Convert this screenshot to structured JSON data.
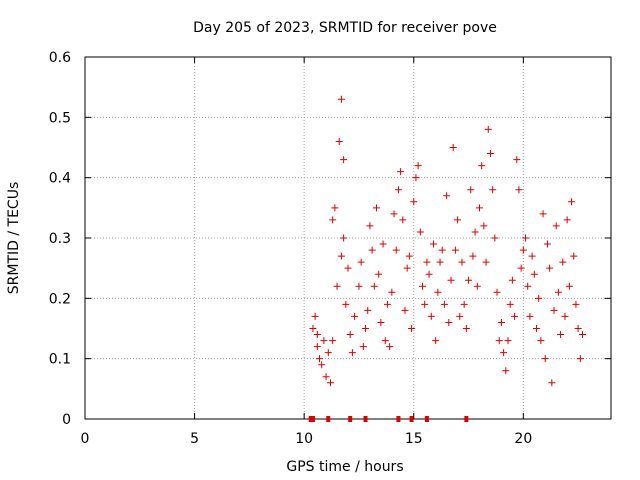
{
  "chart_data": {
    "type": "scatter",
    "title": "Day 205 of 2023, SRMTID for receiver pove",
    "xlabel": "GPS time / hours",
    "ylabel": "SRMTID / TECUs",
    "xlim": [
      0,
      24
    ],
    "ylim": [
      0,
      0.6
    ],
    "x_ticks": [
      0,
      5,
      10,
      15,
      20
    ],
    "x_tick_labels": [
      "0",
      "5",
      "10",
      "15",
      "20"
    ],
    "y_ticks": [
      0,
      0.1,
      0.2,
      0.3,
      0.4,
      0.5,
      0.6
    ],
    "y_tick_labels": [
      "0",
      "0.1",
      "0.2",
      "0.3",
      "0.4",
      "0.5",
      "0.6"
    ],
    "grid": true,
    "marker": "plus",
    "color": "#e00000",
    "bottom_markers_x": [
      10.3,
      10.4,
      11.1,
      12.1,
      12.8,
      14.3,
      14.9,
      15.6,
      17.4
    ],
    "series": [
      {
        "name": "SRMTID",
        "points": [
          [
            10.4,
            0.15
          ],
          [
            10.5,
            0.17
          ],
          [
            10.6,
            0.12
          ],
          [
            10.6,
            0.14
          ],
          [
            10.7,
            0.1
          ],
          [
            10.8,
            0.09
          ],
          [
            10.9,
            0.13
          ],
          [
            11.0,
            0.07
          ],
          [
            11.1,
            0.11
          ],
          [
            11.2,
            0.06
          ],
          [
            11.3,
            0.13
          ],
          [
            11.3,
            0.33
          ],
          [
            11.4,
            0.35
          ],
          [
            11.5,
            0.22
          ],
          [
            11.6,
            0.46
          ],
          [
            11.7,
            0.53
          ],
          [
            11.7,
            0.27
          ],
          [
            11.8,
            0.43
          ],
          [
            11.8,
            0.3
          ],
          [
            11.9,
            0.19
          ],
          [
            12.0,
            0.25
          ],
          [
            12.1,
            0.14
          ],
          [
            12.2,
            0.11
          ],
          [
            12.3,
            0.17
          ],
          [
            12.5,
            0.22
          ],
          [
            12.6,
            0.26
          ],
          [
            12.7,
            0.12
          ],
          [
            12.8,
            0.15
          ],
          [
            12.9,
            0.18
          ],
          [
            13.0,
            0.32
          ],
          [
            13.1,
            0.28
          ],
          [
            13.2,
            0.22
          ],
          [
            13.3,
            0.35
          ],
          [
            13.4,
            0.24
          ],
          [
            13.5,
            0.16
          ],
          [
            13.6,
            0.29
          ],
          [
            13.7,
            0.13
          ],
          [
            13.8,
            0.19
          ],
          [
            13.9,
            0.12
          ],
          [
            14.0,
            0.21
          ],
          [
            14.1,
            0.34
          ],
          [
            14.2,
            0.28
          ],
          [
            14.3,
            0.38
          ],
          [
            14.4,
            0.41
          ],
          [
            14.5,
            0.33
          ],
          [
            14.6,
            0.18
          ],
          [
            14.7,
            0.25
          ],
          [
            14.8,
            0.27
          ],
          [
            14.9,
            0.15
          ],
          [
            15.0,
            0.36
          ],
          [
            15.1,
            0.4
          ],
          [
            15.2,
            0.42
          ],
          [
            15.3,
            0.31
          ],
          [
            15.4,
            0.22
          ],
          [
            15.5,
            0.19
          ],
          [
            15.6,
            0.26
          ],
          [
            15.7,
            0.24
          ],
          [
            15.8,
            0.17
          ],
          [
            15.9,
            0.29
          ],
          [
            16.0,
            0.13
          ],
          [
            16.1,
            0.21
          ],
          [
            16.2,
            0.26
          ],
          [
            16.3,
            0.28
          ],
          [
            16.4,
            0.19
          ],
          [
            16.5,
            0.37
          ],
          [
            16.6,
            0.16
          ],
          [
            16.7,
            0.23
          ],
          [
            16.8,
            0.45
          ],
          [
            16.9,
            0.28
          ],
          [
            17.0,
            0.33
          ],
          [
            17.1,
            0.17
          ],
          [
            17.2,
            0.26
          ],
          [
            17.3,
            0.19
          ],
          [
            17.4,
            0.15
          ],
          [
            17.5,
            0.23
          ],
          [
            17.6,
            0.38
          ],
          [
            17.7,
            0.27
          ],
          [
            17.8,
            0.31
          ],
          [
            17.9,
            0.22
          ],
          [
            18.0,
            0.35
          ],
          [
            18.1,
            0.42
          ],
          [
            18.2,
            0.32
          ],
          [
            18.3,
            0.26
          ],
          [
            18.4,
            0.48
          ],
          [
            18.5,
            0.44
          ],
          [
            18.6,
            0.38
          ],
          [
            18.7,
            0.3
          ],
          [
            18.8,
            0.21
          ],
          [
            18.9,
            0.13
          ],
          [
            19.0,
            0.16
          ],
          [
            19.1,
            0.11
          ],
          [
            19.2,
            0.08
          ],
          [
            19.3,
            0.13
          ],
          [
            19.4,
            0.19
          ],
          [
            19.5,
            0.23
          ],
          [
            19.6,
            0.17
          ],
          [
            19.7,
            0.43
          ],
          [
            19.8,
            0.38
          ],
          [
            19.9,
            0.25
          ],
          [
            20.0,
            0.28
          ],
          [
            20.1,
            0.3
          ],
          [
            20.2,
            0.22
          ],
          [
            20.3,
            0.17
          ],
          [
            20.4,
            0.27
          ],
          [
            20.5,
            0.24
          ],
          [
            20.6,
            0.15
          ],
          [
            20.7,
            0.2
          ],
          [
            20.8,
            0.13
          ],
          [
            20.9,
            0.34
          ],
          [
            21.0,
            0.1
          ],
          [
            21.1,
            0.29
          ],
          [
            21.2,
            0.25
          ],
          [
            21.3,
            0.06
          ],
          [
            21.4,
            0.18
          ],
          [
            21.5,
            0.32
          ],
          [
            21.6,
            0.21
          ],
          [
            21.7,
            0.14
          ],
          [
            21.8,
            0.26
          ],
          [
            21.9,
            0.17
          ],
          [
            22.0,
            0.33
          ],
          [
            22.1,
            0.22
          ],
          [
            22.2,
            0.36
          ],
          [
            22.3,
            0.27
          ],
          [
            22.4,
            0.19
          ],
          [
            22.5,
            0.15
          ],
          [
            22.6,
            0.1
          ],
          [
            22.7,
            0.14
          ]
        ]
      }
    ]
  }
}
